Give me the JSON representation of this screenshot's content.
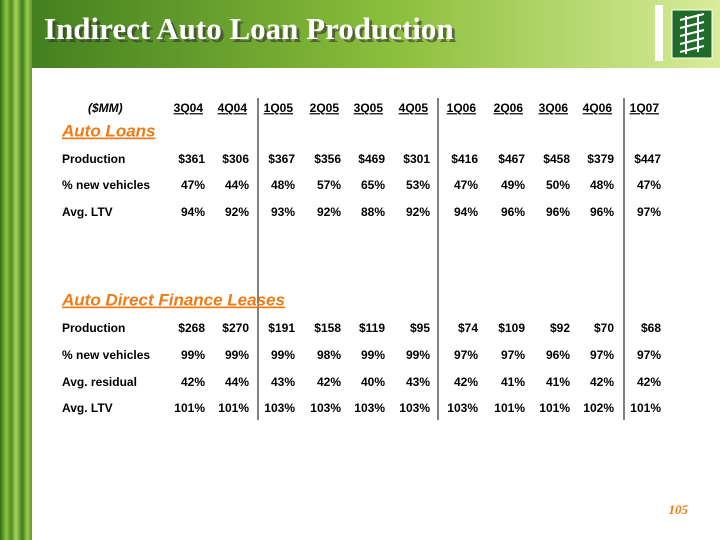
{
  "header": {
    "title": "Indirect Auto Loan Production"
  },
  "table": {
    "unit": "($MM)",
    "columns": [
      "3Q04",
      "4Q04",
      "1Q05",
      "2Q05",
      "3Q05",
      "4Q05",
      "1Q06",
      "2Q06",
      "3Q06",
      "4Q06",
      "1Q07"
    ],
    "sections": [
      {
        "title": "Auto Loans",
        "rows": [
          {
            "label": "Production",
            "values": [
              "$361",
              "$306",
              "$367",
              "$356",
              "$469",
              "$301",
              "$416",
              "$467",
              "$458",
              "$379",
              "$447"
            ]
          },
          {
            "label": "% new vehicles",
            "values": [
              "47%",
              "44%",
              "48%",
              "57%",
              "65%",
              "53%",
              "47%",
              "49%",
              "50%",
              "48%",
              "47%"
            ]
          },
          {
            "label": "Avg. LTV",
            "values": [
              "94%",
              "92%",
              "93%",
              "92%",
              "88%",
              "92%",
              "94%",
              "96%",
              "96%",
              "96%",
              "97%"
            ]
          }
        ]
      },
      {
        "title": "Auto Direct Finance Leases",
        "rows": [
          {
            "label": "Production",
            "values": [
              "$268",
              "$270",
              "$191",
              "$158",
              "$119",
              "$95",
              "$74",
              "$109",
              "$92",
              "$70",
              "$68"
            ]
          },
          {
            "label": "% new vehicles",
            "values": [
              "99%",
              "99%",
              "99%",
              "98%",
              "99%",
              "99%",
              "97%",
              "97%",
              "96%",
              "97%",
              "97%"
            ]
          },
          {
            "label": "Avg. residual",
            "values": [
              "42%",
              "44%",
              "43%",
              "42%",
              "40%",
              "43%",
              "42%",
              "41%",
              "41%",
              "42%",
              "42%"
            ]
          },
          {
            "label": "Avg. LTV",
            "values": [
              "101%",
              "101%",
              "103%",
              "103%",
              "103%",
              "103%",
              "103%",
              "101%",
              "101%",
              "102%",
              "101%"
            ]
          }
        ]
      }
    ]
  },
  "page_number": "105"
}
